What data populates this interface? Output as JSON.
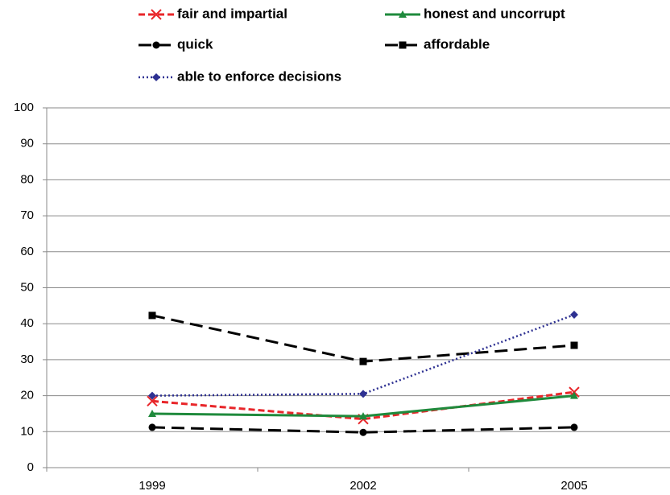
{
  "chart_data": {
    "type": "line",
    "categories": [
      "1999",
      "2002",
      "2005"
    ],
    "series": [
      {
        "name": "fair and impartial",
        "color": "#e8262a",
        "marker": "x",
        "dash": "dashed",
        "values": [
          18.5,
          13.5,
          21
        ]
      },
      {
        "name": "honest and uncorrupt",
        "color": "#1f8a3c",
        "marker": "triangle",
        "dash": "solid",
        "values": [
          15,
          14.3,
          20
        ]
      },
      {
        "name": "quick",
        "color": "#000000",
        "marker": "circle",
        "dash": "longdash",
        "values": [
          11.2,
          9.8,
          11.2
        ]
      },
      {
        "name": "affordable",
        "color": "#000000",
        "marker": "square",
        "dash": "longdash",
        "values": [
          42.3,
          29.5,
          34
        ]
      },
      {
        "name": "able to enforce decisions",
        "color": "#2e3192",
        "marker": "diamond",
        "dash": "dotted",
        "values": [
          20,
          20.5,
          42.5
        ]
      }
    ],
    "ylim": [
      0,
      100
    ],
    "yticks": [
      0,
      10,
      20,
      30,
      40,
      50,
      60,
      70,
      80,
      90,
      100
    ],
    "grid": true,
    "legend": "top"
  }
}
